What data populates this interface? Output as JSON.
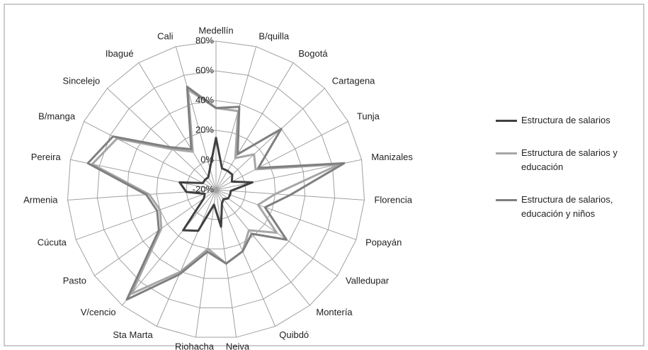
{
  "chart_data": {
    "type": "radar",
    "categories": [
      "Medellín",
      "B/quilla",
      "Bogotá",
      "Cartagena",
      "Tunja",
      "Manizales",
      "Florencia",
      "Popayán",
      "Valledupar",
      "Montería",
      "Quibdó",
      "Neiva",
      "Riohacha",
      "Sta Marta",
      "V/cencio",
      "Pasto",
      "Cúcuta",
      "Armenia",
      "Pereira",
      "B/manga",
      "Sincelejo",
      "Ibagué",
      "Cali"
    ],
    "series": [
      {
        "name": "Estructura de salarios",
        "color": "#404040",
        "values": [
          15,
          -5,
          -5,
          -5,
          -8,
          5,
          -10,
          -10,
          -10,
          -12,
          -10,
          5,
          -10,
          10,
          15,
          -10,
          -12,
          0,
          5,
          -10,
          -10,
          -10,
          -5
        ]
      },
      {
        "name": "Estructura de salarios y educación",
        "color": "#a6a6a6",
        "values": [
          35,
          35,
          5,
          15,
          10,
          65,
          20,
          10,
          30,
          15,
          25,
          30,
          20,
          40,
          70,
          25,
          20,
          25,
          65,
          55,
          20,
          10,
          50
        ]
      },
      {
        "name": "Estructura de salarios, educación y niños",
        "color": "#7f7f7f",
        "values": [
          35,
          38,
          8,
          40,
          12,
          68,
          30,
          15,
          38,
          18,
          25,
          30,
          22,
          42,
          75,
          27,
          22,
          27,
          68,
          58,
          22,
          12,
          52
        ]
      }
    ],
    "ylim": [
      -20,
      80
    ],
    "yticks": [
      {
        "value": -20,
        "label": "-20%"
      },
      {
        "value": 0,
        "label": "0%"
      },
      {
        "value": 20,
        "label": "20%"
      },
      {
        "value": 40,
        "label": "40%"
      },
      {
        "value": 60,
        "label": "60%"
      },
      {
        "value": 80,
        "label": "80%"
      }
    ],
    "grid": true,
    "legend": "right"
  }
}
